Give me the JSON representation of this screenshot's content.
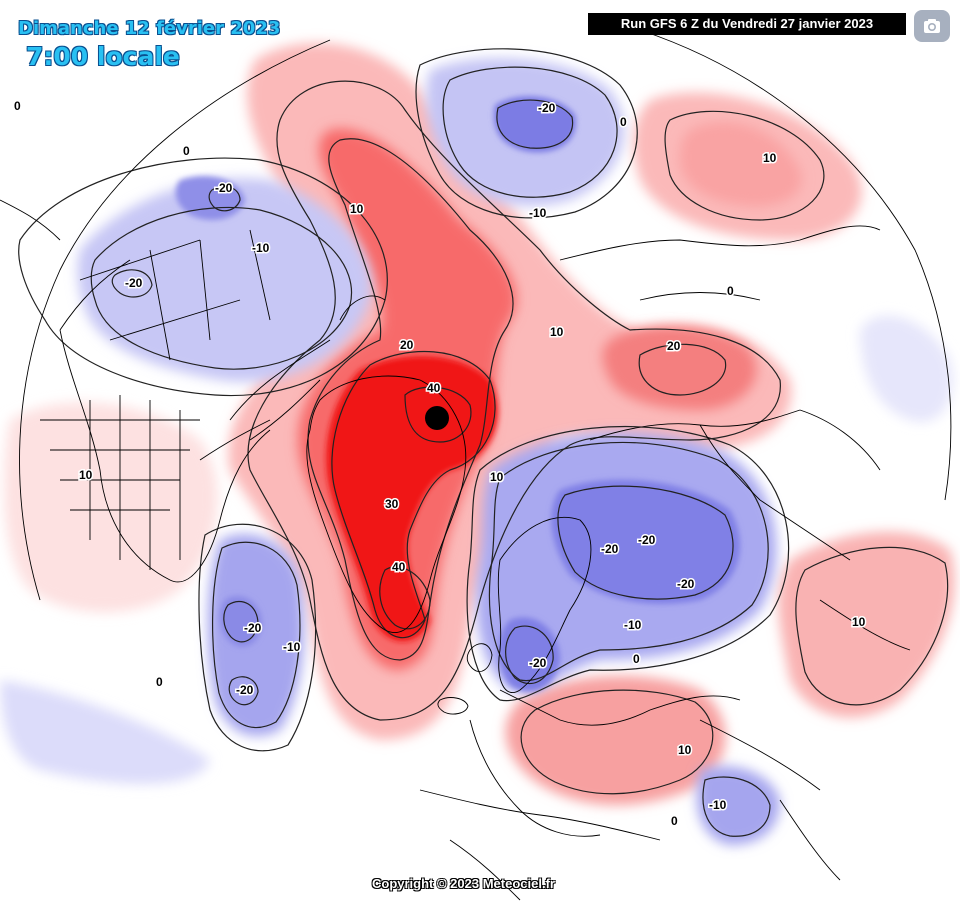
{
  "header": {
    "date_title": "Dimanche 12 février 2023",
    "time_title": "7:00 locale",
    "run_info": "Run GFS 6 Z du Vendredi 27 janvier 2023"
  },
  "toolbar": {
    "camera_icon": "camera-icon"
  },
  "footer": {
    "copyright": "Copyright © 2023 Meteociel.fr"
  },
  "colors": {
    "warm_max": "#f01414",
    "warm_mid": "#f76a6a",
    "warm_low": "#fbb9b9",
    "cold_low": "#d6d6f8",
    "cold_mid": "#a6a6f0",
    "cold_max": "#7070e0",
    "land_outline": "#000000"
  },
  "contour_labels": [
    {
      "id": "label-0-greenland-w",
      "text": "0"
    },
    {
      "id": "label-0-canada-n",
      "text": "0"
    },
    {
      "id": "label-minus20-canada-ne",
      "text": "-20"
    },
    {
      "id": "label-minus10-canada",
      "text": "-10"
    },
    {
      "id": "label-minus20-canada",
      "text": "-20"
    },
    {
      "id": "label-10-beaufort",
      "text": "10"
    },
    {
      "id": "label-minus20-siberia-n",
      "text": "-20"
    },
    {
      "id": "label-0-siberia",
      "text": "0"
    },
    {
      "id": "label-minus10-siberia",
      "text": "-10"
    },
    {
      "id": "label-10-asia-ne",
      "text": "10"
    },
    {
      "id": "label-0-asia-e",
      "text": "0"
    },
    {
      "id": "label-10-kara",
      "text": "10"
    },
    {
      "id": "label-20-russia-n",
      "text": "20"
    },
    {
      "id": "label-20-arctic",
      "text": "20"
    },
    {
      "id": "label-40-pole",
      "text": "40"
    },
    {
      "id": "label-10-barents",
      "text": "10"
    },
    {
      "id": "label-30-greenland",
      "text": "30"
    },
    {
      "id": "label-40-greenland",
      "text": "40"
    },
    {
      "id": "label-10-usa",
      "text": "10"
    },
    {
      "id": "label-minus20-europe-e1",
      "text": "-20"
    },
    {
      "id": "label-minus20-europe-e2",
      "text": "-20"
    },
    {
      "id": "label-minus20-russia-w",
      "text": "-20"
    },
    {
      "id": "label-minus10-europe",
      "text": "-10"
    },
    {
      "id": "label-minus20-scandinavia",
      "text": "-20"
    },
    {
      "id": "label-0-europe-s",
      "text": "0"
    },
    {
      "id": "label-10-asia-c",
      "text": "10"
    },
    {
      "id": "label-minus20-atlantic-1",
      "text": "-20"
    },
    {
      "id": "label-minus10-atlantic",
      "text": "-10"
    },
    {
      "id": "label-minus20-atlantic-2",
      "text": "-20"
    },
    {
      "id": "label-0-atlantic-w",
      "text": "0"
    },
    {
      "id": "label-10-mediterranean",
      "text": "10"
    },
    {
      "id": "label-minus10-middle-east",
      "text": "-10"
    },
    {
      "id": "label-0-africa-n",
      "text": "0"
    }
  ]
}
